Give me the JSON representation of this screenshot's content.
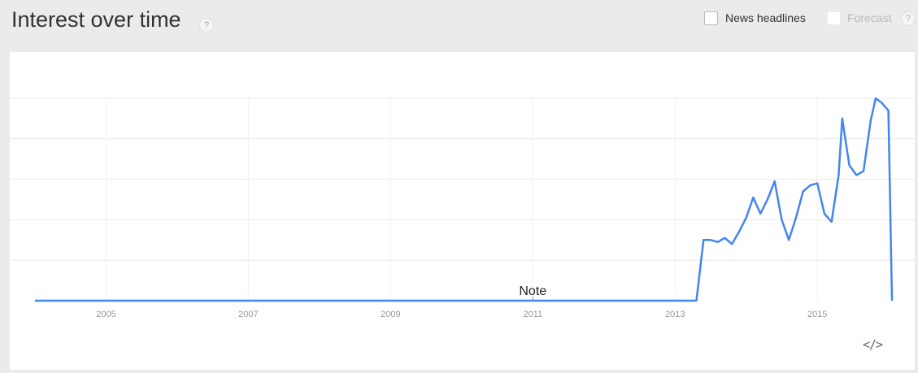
{
  "header": {
    "title": "Interest over time",
    "help_icon_glyph": "?",
    "news_headlines_label": "News headlines",
    "forecast_label": "Forecast",
    "forecast_help_glyph": "?"
  },
  "embed_icon_glyph": "</>",
  "colors": {
    "line": "#4285f4",
    "grid": "#e8e8e8",
    "tick": "#999999"
  },
  "chart_data": {
    "type": "line",
    "title": "",
    "xlabel": "",
    "ylabel": "",
    "xlim": [
      2004.0,
      2015.8
    ],
    "ylim": [
      0,
      100
    ],
    "x_ticks": [
      2005,
      2007,
      2009,
      2011,
      2013,
      2015
    ],
    "x_tick_labels": [
      "2005",
      "2007",
      "2009",
      "2011",
      "2013",
      "2015"
    ],
    "y_gridlines": [
      20,
      40,
      60,
      80,
      100
    ],
    "grid": true,
    "legend": "none",
    "annotations": [
      {
        "label": "Note",
        "x": 2011.0,
        "y": 0
      }
    ],
    "series": [
      {
        "values": [
          [
            2004.0,
            0
          ],
          [
            2013.3,
            0
          ],
          [
            2013.4,
            30
          ],
          [
            2013.5,
            30
          ],
          [
            2013.6,
            29
          ],
          [
            2013.7,
            31
          ],
          [
            2013.8,
            28
          ],
          [
            2013.9,
            34
          ],
          [
            2014.0,
            41
          ],
          [
            2014.1,
            51
          ],
          [
            2014.2,
            43
          ],
          [
            2014.3,
            50
          ],
          [
            2014.4,
            59
          ],
          [
            2014.5,
            40
          ],
          [
            2014.6,
            30
          ],
          [
            2014.7,
            41
          ],
          [
            2014.8,
            54
          ],
          [
            2014.9,
            57
          ],
          [
            2015.0,
            58
          ],
          [
            2015.1,
            43
          ],
          [
            2015.2,
            39
          ],
          [
            2015.3,
            62
          ],
          [
            2015.35,
            90
          ],
          [
            2015.45,
            67
          ],
          [
            2015.55,
            62
          ],
          [
            2015.65,
            64
          ],
          [
            2015.75,
            89
          ],
          [
            2015.82,
            100
          ],
          [
            2015.9,
            98
          ],
          [
            2016.0,
            94
          ],
          [
            2016.05,
            0
          ]
        ]
      }
    ]
  }
}
